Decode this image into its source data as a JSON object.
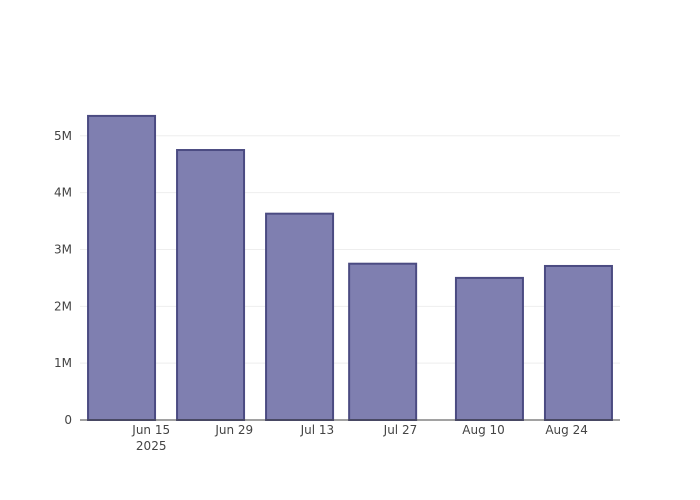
{
  "chart_data": {
    "type": "bar",
    "x": [
      "2025-06-10",
      "2025-06-25",
      "2025-07-10",
      "2025-07-24",
      "2025-08-11",
      "2025-08-26"
    ],
    "values": [
      5350000,
      4750000,
      3630000,
      2750000,
      2500000,
      2710000
    ],
    "color": "#7f7fb0",
    "edge_color": "#4b4b82",
    "xlim": [
      "2025-06-03",
      "2025-09-02"
    ],
    "xticks": [
      {
        "value": "2025-06-15",
        "label": "Jun 15\n2025"
      },
      {
        "value": "2025-06-29",
        "label": "Jun 29"
      },
      {
        "value": "2025-07-13",
        "label": "Jul 13"
      },
      {
        "value": "2025-07-27",
        "label": "Jul 27"
      },
      {
        "value": "2025-08-10",
        "label": "Aug 10"
      },
      {
        "value": "2025-08-24",
        "label": "Aug 24"
      }
    ],
    "ylim": [
      0,
      5630000
    ],
    "yticks": [
      0,
      {
        "value": 1000000,
        "label": "1M"
      },
      {
        "value": 2000000,
        "label": "2M"
      },
      {
        "value": 3000000,
        "label": "3M"
      },
      {
        "value": 4000000,
        "label": "4M"
      },
      {
        "value": 5000000,
        "label": "5M"
      }
    ],
    "grid": true
  }
}
